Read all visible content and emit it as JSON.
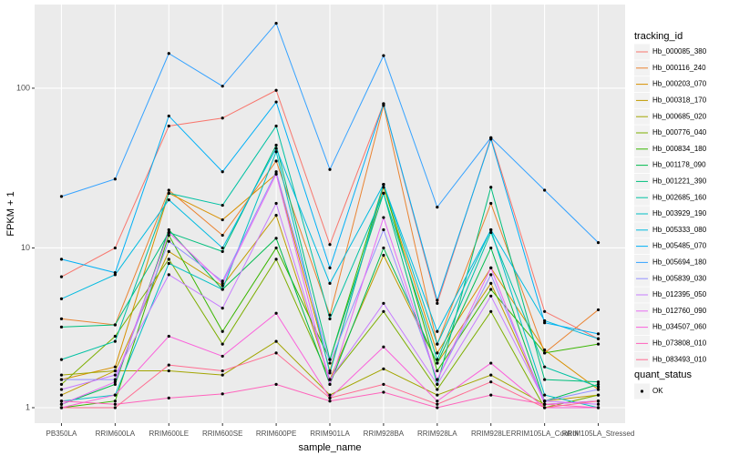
{
  "chart_data": {
    "type": "line",
    "x_label": "sample_name",
    "y_label": "FPKM + 1",
    "log_y": true,
    "grid": true,
    "legend_title": "tracking_id",
    "point_legend_title": "quant_status",
    "point_legend_label": "OK",
    "point_color": "#000000",
    "categories": [
      "PB350LA",
      "RRIM600LA",
      "RRIM600LE",
      "RRIM600SE",
      "RRIM600PE",
      "RRIM901LA",
      "RRIM928BA",
      "RRIM928LA",
      "RRIM928LE",
      "RRIM105LA_Control",
      "RRIM105LA_Stressed"
    ],
    "ylim": [
      0.8,
      334
    ],
    "yticks": [
      1,
      10,
      100
    ],
    "series": [
      {
        "name": "Hb_000085_380",
        "color": "#F8766D",
        "values": [
          6.6,
          10,
          58,
          65,
          97,
          10.5,
          80,
          4.5,
          49,
          4,
          2.7
        ]
      },
      {
        "name": "Hb_000116_240",
        "color": "#EA8331",
        "values": [
          3.6,
          3.3,
          23,
          12,
          35,
          3.8,
          78,
          2.5,
          19,
          2.2,
          4.1
        ]
      },
      {
        "name": "Hb_000203_070",
        "color": "#D89000",
        "values": [
          1.5,
          1.8,
          22,
          15,
          29,
          1.7,
          24,
          2.2,
          7.5,
          2.3,
          1.3
        ]
      },
      {
        "name": "Hb_000318_170",
        "color": "#C09B00",
        "values": [
          1.2,
          1.7,
          9.5,
          5.8,
          16,
          1.5,
          9,
          1.9,
          6,
          1.1,
          1.2
        ]
      },
      {
        "name": "Hb_000685_020",
        "color": "#A3A500",
        "values": [
          1.6,
          1.7,
          1.7,
          1.6,
          2.6,
          1.2,
          1.75,
          1.2,
          1.6,
          1.05,
          1.1
        ]
      },
      {
        "name": "Hb_000776_040",
        "color": "#7CAE00",
        "values": [
          1.4,
          2.8,
          8.5,
          2.5,
          8.5,
          1.5,
          4,
          1.3,
          4,
          1.0,
          1.2
        ]
      },
      {
        "name": "Hb_000834_180",
        "color": "#39B600",
        "values": [
          1.0,
          1.1,
          12,
          3,
          10,
          2,
          25,
          1.7,
          5.5,
          2.2,
          2.5
        ]
      },
      {
        "name": "Hb_001178_090",
        "color": "#00BB4E",
        "values": [
          1.05,
          1.4,
          13,
          5.5,
          11.5,
          1.4,
          10,
          1.9,
          10,
          1.1,
          1.4
        ]
      },
      {
        "name": "Hb_001221_390",
        "color": "#00BF7D",
        "values": [
          3.2,
          3.3,
          12.5,
          9.5,
          44,
          2,
          22,
          1.4,
          24,
          1.5,
          1.45
        ]
      },
      {
        "name": "Hb_002685_160",
        "color": "#00C1A3",
        "values": [
          2.0,
          2.6,
          22,
          18.5,
          58,
          3.6,
          22,
          2,
          12.5,
          1.8,
          1.35
        ]
      },
      {
        "name": "Hb_003929_190",
        "color": "#00BFC4",
        "values": [
          1.1,
          1.2,
          8,
          5.5,
          40,
          1.65,
          25,
          2.5,
          13,
          1.2,
          1.0
        ]
      },
      {
        "name": "Hb_005333_080",
        "color": "#00BAE0",
        "values": [
          4.8,
          6.8,
          20,
          10,
          42,
          6,
          25,
          3,
          13,
          3.5,
          2.7
        ]
      },
      {
        "name": "Hb_005485_070",
        "color": "#00B0F6",
        "values": [
          8.5,
          7,
          67,
          30,
          82,
          7.5,
          80,
          4.7,
          48,
          3.4,
          2.9
        ]
      },
      {
        "name": "Hb_005694_180",
        "color": "#35A2FF",
        "values": [
          21,
          27,
          165,
          103,
          255,
          31,
          160,
          18,
          49,
          23,
          10.8
        ]
      },
      {
        "name": "Hb_005839_030",
        "color": "#9590FF",
        "values": [
          1.5,
          1.5,
          11,
          6.2,
          30,
          1.9,
          13,
          1.5,
          6.8,
          1.1,
          1.3
        ]
      },
      {
        "name": "Hb_012395_050",
        "color": "#C77CFF",
        "values": [
          1.3,
          1.6,
          6.8,
          4.2,
          19,
          1.5,
          4.5,
          1.4,
          5,
          1.1,
          1.05
        ]
      },
      {
        "name": "Hb_012760_090",
        "color": "#E76BF3",
        "values": [
          1.05,
          1.45,
          12.5,
          6,
          29,
          1.4,
          15.5,
          1.5,
          7.5,
          1.05,
          1.1
        ]
      },
      {
        "name": "Hb_034507_060",
        "color": "#FA62DB",
        "values": [
          1.0,
          1.2,
          2.8,
          2.1,
          3.9,
          1.15,
          2.4,
          1.1,
          1.9,
          1.0,
          1.0
        ]
      },
      {
        "name": "Hb_073808_010",
        "color": "#FF62BC",
        "values": [
          1.1,
          1.05,
          1.15,
          1.22,
          1.4,
          1.1,
          1.25,
          1.0,
          1.2,
          1.05,
          1.0
        ]
      },
      {
        "name": "Hb_083493_010",
        "color": "#FF6C91",
        "values": [
          1.0,
          1.0,
          1.85,
          1.7,
          2.2,
          1.15,
          1.4,
          1.05,
          1.45,
          1.0,
          1.1
        ]
      }
    ]
  }
}
